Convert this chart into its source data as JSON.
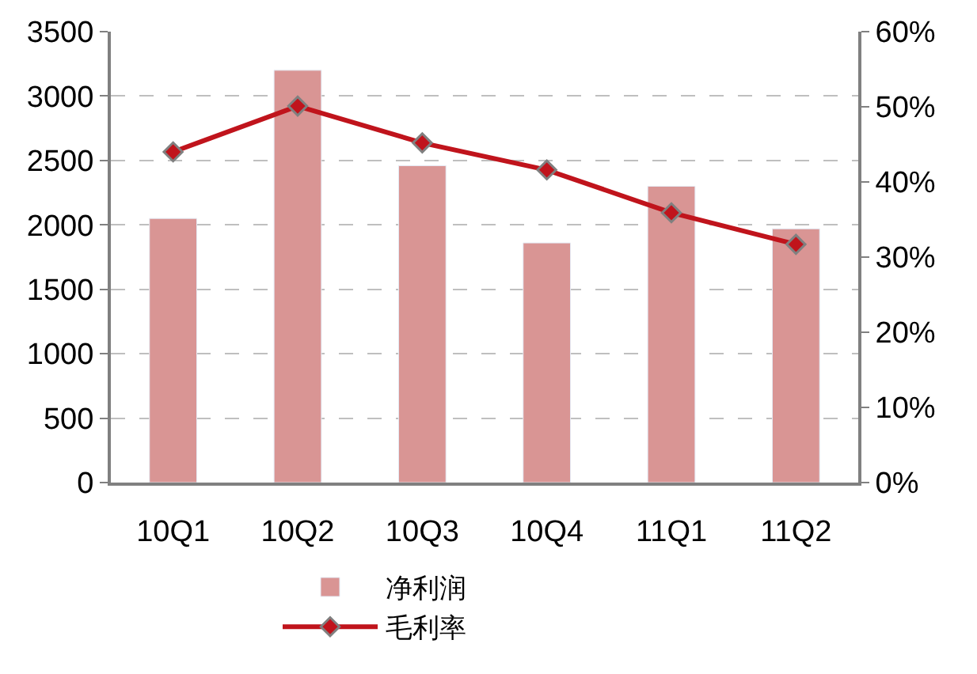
{
  "chart_data": {
    "type": "bar",
    "categories": [
      "10Q1",
      "10Q2",
      "10Q3",
      "10Q4",
      "11Q1",
      "11Q2"
    ],
    "series": [
      {
        "name": "净利润",
        "color": "#d99594",
        "values": [
          2050,
          3200,
          2460,
          1860,
          2300,
          1970
        ]
      },
      {
        "name": "毛利率",
        "type": "line",
        "axis": "y2",
        "color": "#c0141c",
        "marker": "diamond",
        "values": [
          44.0,
          50.1,
          45.2,
          41.6,
          35.9,
          31.7
        ]
      }
    ],
    "ylim": [
      0,
      3500
    ],
    "yticks": [
      0,
      500,
      1000,
      1500,
      2000,
      2500,
      3000,
      3500
    ],
    "y2lim": [
      0,
      60
    ],
    "y2ticks": [
      {
        "value": 0,
        "label": "0%"
      },
      {
        "value": 10,
        "label": "10%"
      },
      {
        "value": 20,
        "label": "20%"
      },
      {
        "value": 30,
        "label": "30%"
      },
      {
        "value": 40,
        "label": "40%"
      },
      {
        "value": 50,
        "label": "50%"
      },
      {
        "value": 60,
        "label": "60%"
      }
    ],
    "grid": "y",
    "legend": "bottom"
  }
}
